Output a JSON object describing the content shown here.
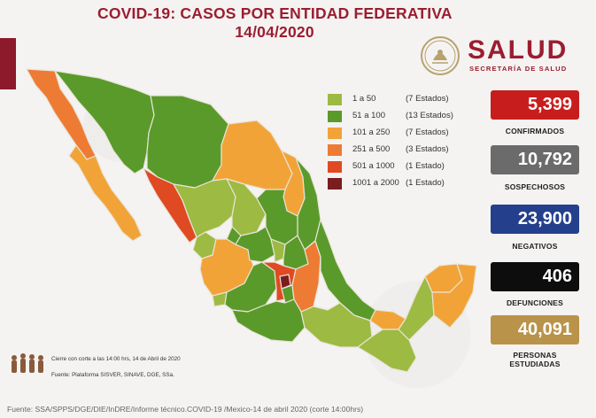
{
  "header": {
    "title_line1": "COVID-19: CASOS POR ENTIDAD FEDERATIVA",
    "title_line2": "14/04/2020"
  },
  "logo": {
    "word": "SALUD",
    "subtitle": "SECRETARÍA DE SALUD",
    "emblem_icon": "coat-of-arms-icon"
  },
  "legend": [
    {
      "range": "1 a 50",
      "count": "(7 Estados)",
      "color": "#9dba42"
    },
    {
      "range": "51 a 100",
      "count": "(13 Estados)",
      "color": "#5a9a2a"
    },
    {
      "range": "101 a 250",
      "count": "(7 Estados)",
      "color": "#f2a338"
    },
    {
      "range": "251 a 500",
      "count": "(3 Estados)",
      "color": "#ee7b33"
    },
    {
      "range": "501 a 1000",
      "count": "(1 Estado)",
      "color": "#e04a22"
    },
    {
      "range": "1001 a 2000",
      "count": "(1 Estado)",
      "color": "#7a1d1f"
    }
  ],
  "stats": [
    {
      "value": "5,399",
      "label": "CONFIRMADOS",
      "color": "#c81d1d"
    },
    {
      "value": "10,792",
      "label": "SOSPECHOSOS",
      "color": "#6b6b6b"
    },
    {
      "value": "23,900",
      "label": "NEGATIVOS",
      "color": "#243f8c"
    },
    {
      "value": "406",
      "label": "DEFUNCIONES",
      "color": "#0d0d0d"
    },
    {
      "value": "40,091",
      "label": "PERSONAS ESTUDIADAS",
      "color": "#b9934a"
    }
  ],
  "footer": {
    "cierre": "Cierre con corte a las 14:00 hrs, 14 de Abril de 2020",
    "plataforma": "Fuente: Plataforma SISVER, SINAVE, DGE, SSa.",
    "fuente": "Fuente: SSA/SPPS/DGE/DIE/InDRE/Informe técnico.COVID-19 /Mexico-14 de abril 2020 (corte 14:00hrs)"
  },
  "map": {
    "country": "Mexico",
    "icons": [
      "people-group-icon"
    ]
  }
}
